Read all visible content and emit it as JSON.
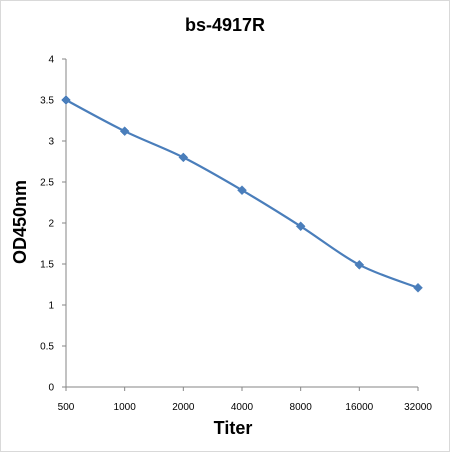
{
  "chart_data": {
    "type": "line",
    "title": "bs-4917R",
    "xlabel": "Titer",
    "ylabel": "OD450nm",
    "categories": [
      "500",
      "1000",
      "2000",
      "4000",
      "8000",
      "16000",
      "32000"
    ],
    "series": [
      {
        "values": [
          3.5,
          3.12,
          2.8,
          2.4,
          1.96,
          1.49,
          1.21
        ]
      }
    ],
    "ylim": [
      0,
      4
    ],
    "yticks": [
      "0",
      "0.5",
      "1",
      "1.5",
      "2",
      "2.5",
      "3",
      "3.5",
      "4"
    ],
    "grid": false,
    "legend": "none",
    "line_color": "#4a7ebb",
    "marker": "diamond"
  }
}
